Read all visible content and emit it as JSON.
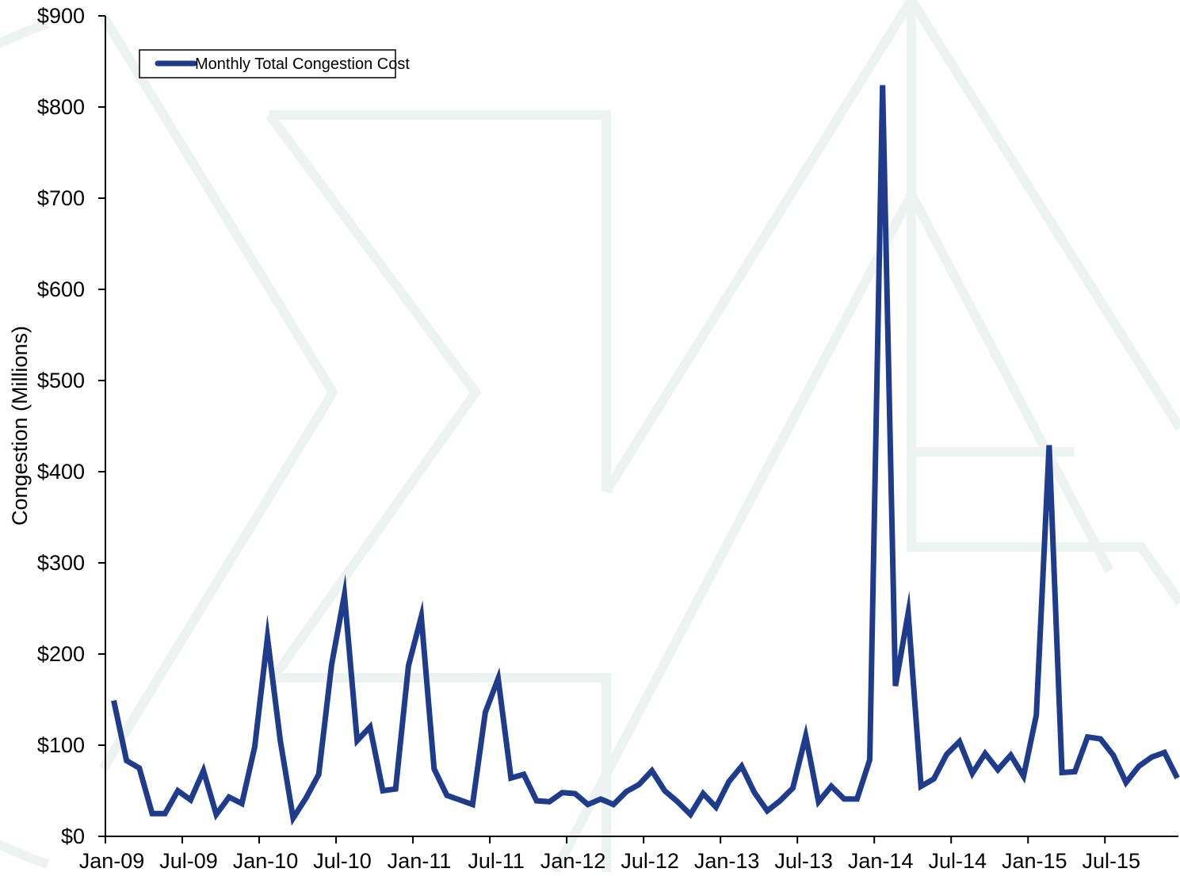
{
  "chart_data": {
    "type": "line",
    "ylabel": "Congestion (Millions)",
    "xlabel": "",
    "ylim": [
      0,
      900
    ],
    "y_ticks": [
      "$0",
      "$100",
      "$200",
      "$300",
      "$400",
      "$500",
      "$600",
      "$700",
      "$800",
      "$900"
    ],
    "y_tick_values": [
      0,
      100,
      200,
      300,
      400,
      500,
      600,
      700,
      800,
      900
    ],
    "x_ticks": [
      "Jan-09",
      "Jul-09",
      "Jan-10",
      "Jul-10",
      "Jan-11",
      "Jul-11",
      "Jan-12",
      "Jul-12",
      "Jan-13",
      "Jul-13",
      "Jan-14",
      "Jul-14",
      "Jan-15",
      "Jul-15"
    ],
    "x_tick_dates": [
      "2009-01",
      "2009-07",
      "2010-01",
      "2010-07",
      "2011-01",
      "2011-07",
      "2012-01",
      "2012-07",
      "2013-01",
      "2013-07",
      "2014-01",
      "2014-07",
      "2015-01",
      "2015-07"
    ],
    "x_range": [
      "2009-01",
      "2015-12"
    ],
    "legend": {
      "placement": "top-left",
      "color": "#1f3c8c"
    },
    "grid": false,
    "series": [
      {
        "name": "Monthly Total Congestion Cost",
        "color": "#1f3c8c",
        "x": [
          "2009-01",
          "2009-02",
          "2009-03",
          "2009-04",
          "2009-05",
          "2009-06",
          "2009-07",
          "2009-08",
          "2009-09",
          "2009-10",
          "2009-11",
          "2009-12",
          "2010-01",
          "2010-02",
          "2010-03",
          "2010-04",
          "2010-05",
          "2010-06",
          "2010-07",
          "2010-08",
          "2010-09",
          "2010-10",
          "2010-11",
          "2010-12",
          "2011-01",
          "2011-02",
          "2011-03",
          "2011-04",
          "2011-05",
          "2011-06",
          "2011-07",
          "2011-08",
          "2011-09",
          "2011-10",
          "2011-11",
          "2011-12",
          "2012-01",
          "2012-02",
          "2012-03",
          "2012-04",
          "2012-05",
          "2012-06",
          "2012-07",
          "2012-08",
          "2012-09",
          "2012-10",
          "2012-11",
          "2012-12",
          "2013-01",
          "2013-02",
          "2013-03",
          "2013-04",
          "2013-05",
          "2013-06",
          "2013-07",
          "2013-08",
          "2013-09",
          "2013-10",
          "2013-11",
          "2013-12",
          "2014-01",
          "2014-02",
          "2014-03",
          "2014-04",
          "2014-05",
          "2014-06",
          "2014-07",
          "2014-08",
          "2014-09",
          "2014-10",
          "2014-11",
          "2014-12",
          "2015-01",
          "2015-02",
          "2015-03",
          "2015-04",
          "2015-05",
          "2015-06",
          "2015-07",
          "2015-08",
          "2015-09",
          "2015-10",
          "2015-11",
          "2015-12"
        ],
        "values": [
          149,
          83,
          75,
          25,
          25,
          50,
          40,
          72,
          24,
          43,
          36,
          98,
          218,
          105,
          20,
          42,
          68,
          188,
          265,
          105,
          120,
          50,
          52,
          187,
          241,
          74,
          45,
          40,
          35,
          136,
          173,
          64,
          68,
          39,
          38,
          48,
          47,
          35,
          41,
          35,
          49,
          57,
          72,
          50,
          38,
          24,
          47,
          32,
          60,
          77,
          48,
          28,
          39,
          53,
          110,
          38,
          55,
          41,
          41,
          84,
          824,
          165,
          245,
          55,
          63,
          90,
          104,
          69,
          91,
          73,
          89,
          66,
          133,
          429,
          70,
          71,
          109,
          107,
          89,
          59,
          77,
          87,
          92,
          64
        ]
      }
    ]
  }
}
